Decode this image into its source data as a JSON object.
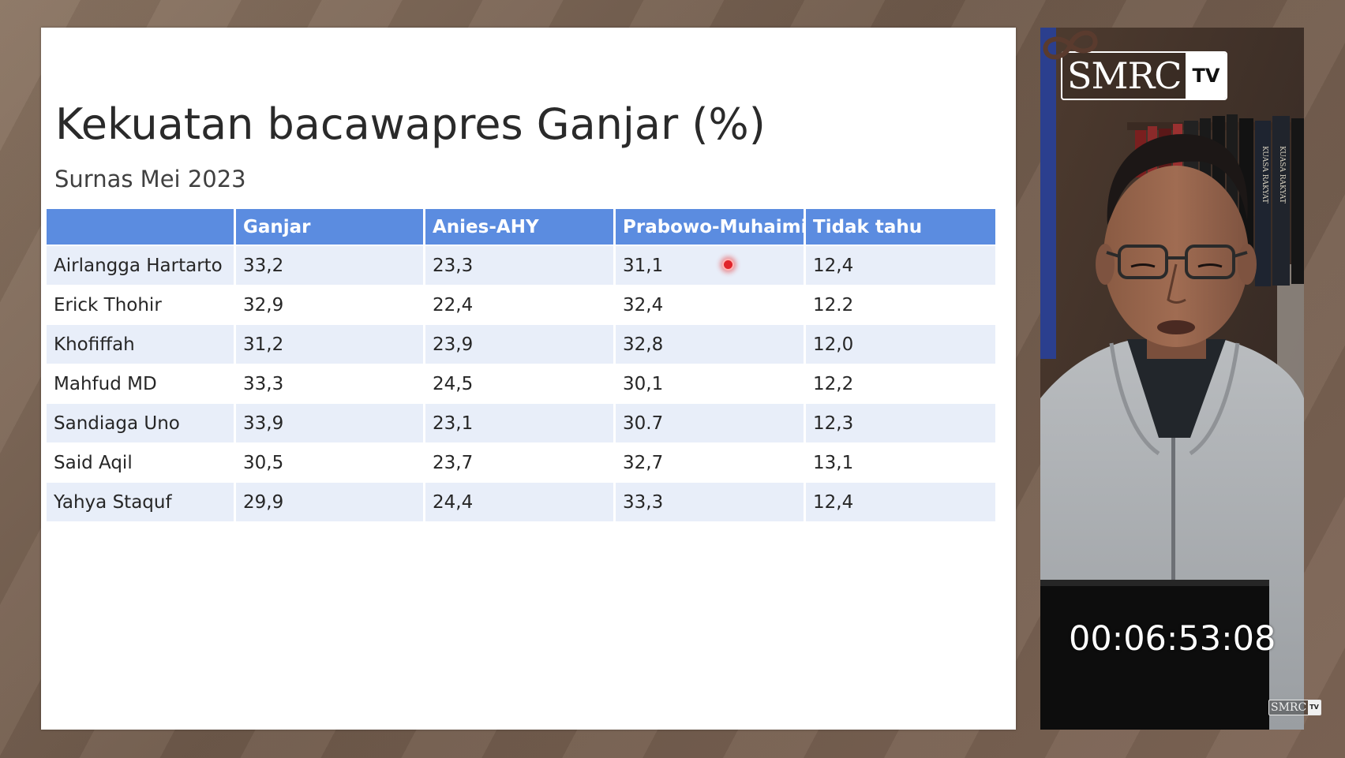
{
  "slide": {
    "title": "Kekuatan bacawapres Ganjar (%)",
    "subtitle": "Surnas Mei 2023",
    "table": {
      "headers": [
        "",
        "Ganjar",
        "Anies-AHY",
        "Prabowo-Muhaimin",
        "Tidak tahu"
      ],
      "rows": [
        [
          "Airlangga Hartarto",
          "33,2",
          "23,3",
          "31,1",
          "12,4"
        ],
        [
          "Erick Thohir",
          "32,9",
          "22,4",
          "32,4",
          "12.2"
        ],
        [
          "Khofiffah",
          "31,2",
          "23,9",
          "32,8",
          "12,0"
        ],
        [
          "Mahfud MD",
          "33,3",
          "24,5",
          "30,1",
          "12,2"
        ],
        [
          "Sandiaga Uno",
          "33,9",
          "23,1",
          "30.7",
          "12,3"
        ],
        [
          "Said Aqil",
          "30,5",
          "23,7",
          "32,7",
          "13,1"
        ],
        [
          "Yahya Staquf",
          "29,9",
          "24,4",
          "33,3",
          "12,4"
        ]
      ]
    }
  },
  "video": {
    "logo_main": "SMRC",
    "logo_tv": "TV",
    "timestamp": "00:06:53:08",
    "book_spine_text": "KUASA RAKYAT",
    "loop_icon": "infinity-loop-icon"
  },
  "watermark": {
    "main": "SMRC",
    "tv": "TV"
  },
  "colors": {
    "header_bg": "#5b8ce0",
    "row_alt_bg": "#e8eef9",
    "laser": "#e0242a"
  }
}
